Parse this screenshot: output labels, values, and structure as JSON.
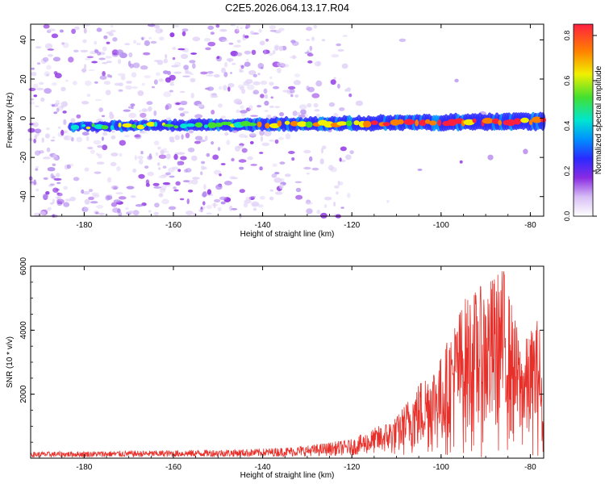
{
  "title": "C2E5.2026.064.13.17.R04",
  "chart_data": [
    {
      "type": "heatmap",
      "name": "spectrogram",
      "xlabel": "Height of straight line (km)",
      "ylabel": "Frequency (Hz)",
      "xlim": [
        -192,
        -77
      ],
      "ylim": [
        -50,
        48
      ],
      "xticks": [
        -180,
        -160,
        -140,
        -120,
        -100,
        -80
      ],
      "yticks": [
        -40,
        -20,
        0,
        20,
        40
      ],
      "colorbar": {
        "label": "Normalized spectral amplitude",
        "range": [
          0,
          0.85
        ],
        "ticks": [
          0.0,
          0.2,
          0.4,
          0.6,
          0.8
        ],
        "tick_labels": [
          "0.0",
          "0.2",
          "0.4",
          "0.6",
          "0.8"
        ]
      },
      "signal_band": {
        "description": "narrow band near -4 Hz at low heights rising to about -1 Hz near -78 km",
        "freq_start": -4.5,
        "freq_end": -1.5,
        "band_halfwidth_hz": 3,
        "noise_cutoff_km": -120
      }
    },
    {
      "type": "line",
      "name": "snr",
      "xlabel": "Height of straight line (km)",
      "ylabel": "SNR (10 * v/v)",
      "xlim": [
        -192,
        -77
      ],
      "ylim": [
        0,
        6000
      ],
      "xticks": [
        -180,
        -160,
        -140,
        -120,
        -100,
        -80
      ],
      "yticks": [
        2000,
        4000,
        6000
      ],
      "color": "#e8302a",
      "envelope": [
        {
          "x": -192,
          "y": 200
        },
        {
          "x": -160,
          "y": 250
        },
        {
          "x": -140,
          "y": 300
        },
        {
          "x": -130,
          "y": 400
        },
        {
          "x": -120,
          "y": 600
        },
        {
          "x": -110,
          "y": 1300
        },
        {
          "x": -104,
          "y": 2600
        },
        {
          "x": -100,
          "y": 3200
        },
        {
          "x": -95,
          "y": 5000
        },
        {
          "x": -90,
          "y": 5500
        },
        {
          "x": -86,
          "y": 6000
        },
        {
          "x": -82,
          "y": 3500
        },
        {
          "x": -78,
          "y": 4500
        },
        {
          "x": -77,
          "y": 1000
        }
      ]
    }
  ]
}
